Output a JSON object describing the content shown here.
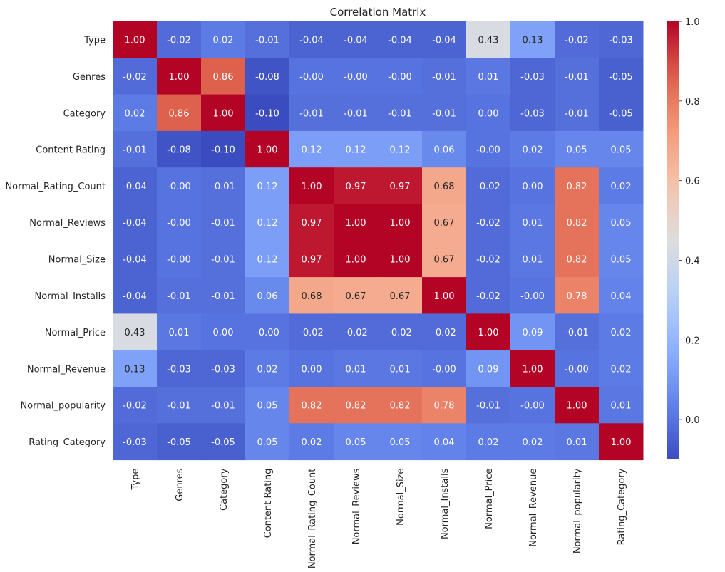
{
  "chart_data": {
    "type": "heatmap",
    "title": "Correlation Matrix",
    "xlabel": "",
    "ylabel": "",
    "colormap": "coolwarm",
    "vmin": -0.1,
    "vmax": 1.0,
    "row_labels": [
      "Type",
      "Genres",
      "Category",
      "Content Rating",
      "Normal_Rating_Count",
      "Normal_Reviews",
      "Normal_Size",
      "Normal_Installs",
      "Normal_Price",
      "Normal_Revenue",
      "Normal_popularity",
      "Rating_Category"
    ],
    "col_labels": [
      "Type",
      "Genres",
      "Category",
      "Content Rating",
      "Normal_Rating_Count",
      "Normal_Reviews",
      "Normal_Size",
      "Normal_Installs",
      "Normal_Price",
      "Normal_Revenue",
      "Normal_popularity",
      "Rating_Category"
    ],
    "cell_text": [
      [
        "1.00",
        "-0.02",
        "0.02",
        "-0.01",
        "-0.04",
        "-0.04",
        "-0.04",
        "-0.04",
        "0.43",
        "0.13",
        "-0.02",
        "-0.03"
      ],
      [
        "-0.02",
        "1.00",
        "0.86",
        "-0.08",
        "-0.00",
        "-0.00",
        "-0.00",
        "-0.01",
        "0.01",
        "-0.03",
        "-0.01",
        "-0.05"
      ],
      [
        "0.02",
        "0.86",
        "1.00",
        "-0.10",
        "-0.01",
        "-0.01",
        "-0.01",
        "-0.01",
        "0.00",
        "-0.03",
        "-0.01",
        "-0.05"
      ],
      [
        "-0.01",
        "-0.08",
        "-0.10",
        "1.00",
        "0.12",
        "0.12",
        "0.12",
        "0.06",
        "-0.00",
        "0.02",
        "0.05",
        "0.05"
      ],
      [
        "-0.04",
        "-0.00",
        "-0.01",
        "0.12",
        "1.00",
        "0.97",
        "0.97",
        "0.68",
        "-0.02",
        "0.00",
        "0.82",
        "0.02"
      ],
      [
        "-0.04",
        "-0.00",
        "-0.01",
        "0.12",
        "0.97",
        "1.00",
        "1.00",
        "0.67",
        "-0.02",
        "0.01",
        "0.82",
        "0.05"
      ],
      [
        "-0.04",
        "-0.00",
        "-0.01",
        "0.12",
        "0.97",
        "1.00",
        "1.00",
        "0.67",
        "-0.02",
        "0.01",
        "0.82",
        "0.05"
      ],
      [
        "-0.04",
        "-0.01",
        "-0.01",
        "0.06",
        "0.68",
        "0.67",
        "0.67",
        "1.00",
        "-0.02",
        "-0.00",
        "0.78",
        "0.04"
      ],
      [
        "0.43",
        "0.01",
        "0.00",
        "-0.00",
        "-0.02",
        "-0.02",
        "-0.02",
        "-0.02",
        "1.00",
        "0.09",
        "-0.01",
        "0.02"
      ],
      [
        "0.13",
        "-0.03",
        "-0.03",
        "0.02",
        "0.00",
        "0.01",
        "0.01",
        "-0.00",
        "0.09",
        "1.00",
        "-0.00",
        "0.02"
      ],
      [
        "-0.02",
        "-0.01",
        "-0.01",
        "0.05",
        "0.82",
        "0.82",
        "0.82",
        "0.78",
        "-0.01",
        "-0.00",
        "1.00",
        "0.01"
      ],
      [
        "-0.03",
        "-0.05",
        "-0.05",
        "0.05",
        "0.02",
        "0.05",
        "0.05",
        "0.04",
        "0.02",
        "0.02",
        "0.01",
        "1.00"
      ]
    ],
    "colorbar": {
      "ticks": [
        0.0,
        0.2,
        0.4,
        0.6,
        0.8,
        1.0
      ],
      "tick_labels": [
        "0.0",
        "0.2",
        "0.4",
        "0.6",
        "0.8",
        "1.0"
      ]
    },
    "grid": false,
    "legend": "colorbar-right"
  }
}
